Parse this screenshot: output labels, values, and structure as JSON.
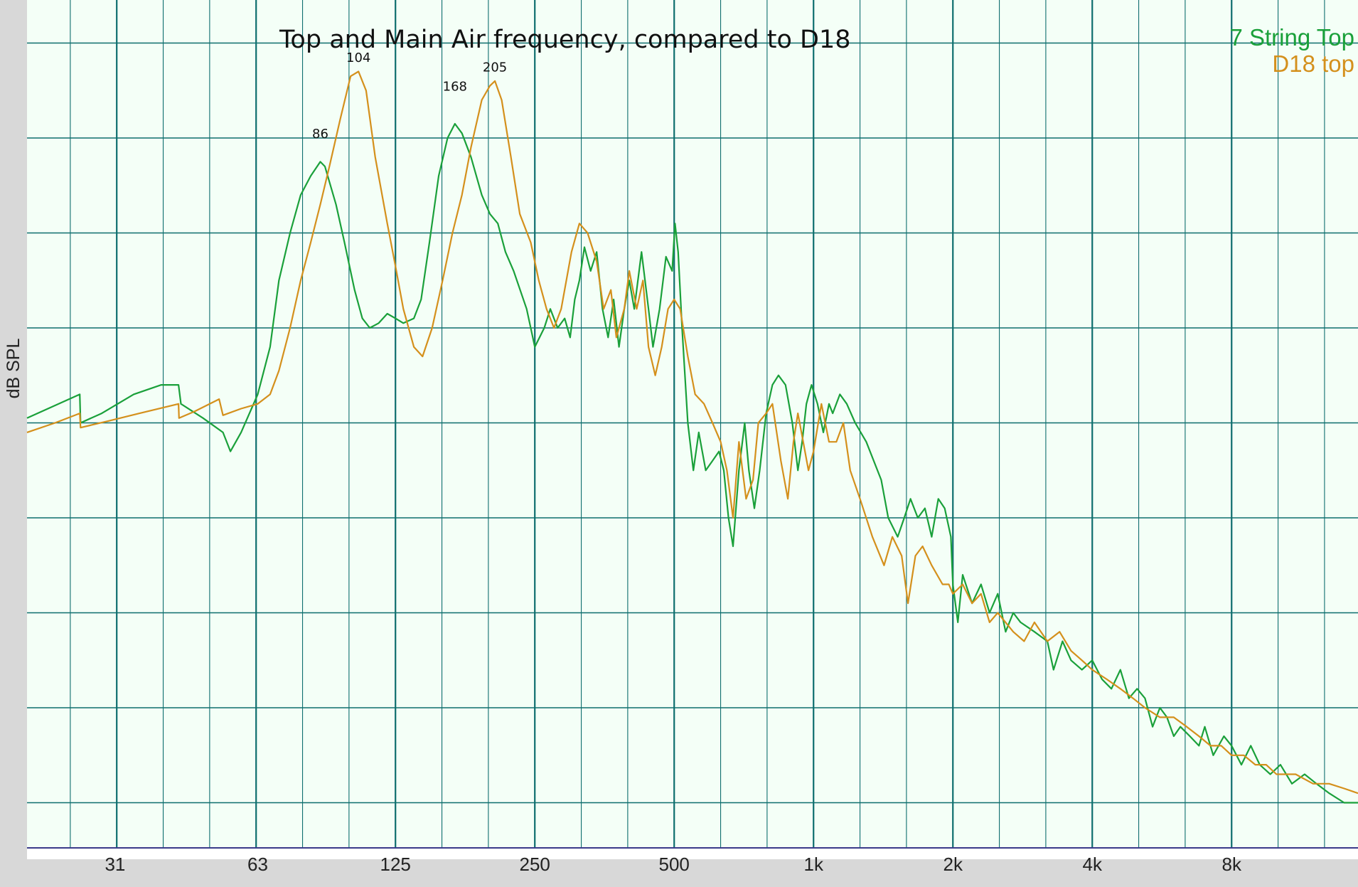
{
  "chart_data": {
    "type": "line",
    "title": "Top and Main Air frequency, compared to D18",
    "xlabel": "",
    "ylabel": "dB SPL",
    "x_scale": "log",
    "xlim": [
      20,
      15000
    ],
    "ylim": [
      0,
      100
    ],
    "grid": true,
    "legend_position": "top-right",
    "x_tick_labels": [
      {
        "f": 31,
        "label": "31"
      },
      {
        "f": 63,
        "label": "63"
      },
      {
        "f": 125,
        "label": "125"
      },
      {
        "f": 250,
        "label": "250"
      },
      {
        "f": 500,
        "label": "500"
      },
      {
        "f": 1000,
        "label": "1k"
      },
      {
        "f": 2000,
        "label": "2k"
      },
      {
        "f": 4000,
        "label": "4k"
      },
      {
        "f": 8000,
        "label": "8k"
      }
    ],
    "annotations": [
      {
        "text": "86",
        "x": 86,
        "y": 80
      },
      {
        "text": "104",
        "x": 104,
        "y": 88
      },
      {
        "text": "168",
        "x": 168,
        "y": 85
      },
      {
        "text": "205",
        "x": 205,
        "y": 87
      }
    ],
    "series": [
      {
        "name": "7 String Top",
        "color": "#1aa03a",
        "points": [
          [
            20,
            50.5
          ],
          [
            26,
            53
          ],
          [
            26.1,
            50
          ],
          [
            29,
            51
          ],
          [
            34,
            53
          ],
          [
            39,
            54
          ],
          [
            42.5,
            54
          ],
          [
            43,
            52
          ],
          [
            48,
            50.5
          ],
          [
            53,
            49
          ],
          [
            55,
            47
          ],
          [
            58,
            49
          ],
          [
            63,
            53
          ],
          [
            67,
            58
          ],
          [
            70,
            65
          ],
          [
            74,
            70
          ],
          [
            78,
            74
          ],
          [
            82,
            76
          ],
          [
            86,
            77.5
          ],
          [
            88,
            77
          ],
          [
            93,
            73
          ],
          [
            97,
            69
          ],
          [
            102,
            64
          ],
          [
            106,
            61
          ],
          [
            110,
            60
          ],
          [
            115,
            60.5
          ],
          [
            120,
            61.5
          ],
          [
            125,
            61
          ],
          [
            130,
            60.5
          ],
          [
            137,
            61
          ],
          [
            142,
            63
          ],
          [
            148,
            69
          ],
          [
            155,
            76
          ],
          [
            162,
            80
          ],
          [
            168,
            81.5
          ],
          [
            174,
            80.5
          ],
          [
            182,
            78
          ],
          [
            192,
            74
          ],
          [
            200,
            72
          ],
          [
            208,
            71
          ],
          [
            216,
            68
          ],
          [
            225,
            66
          ],
          [
            240,
            62
          ],
          [
            250,
            58
          ],
          [
            262,
            60
          ],
          [
            270,
            62
          ],
          [
            280,
            60
          ],
          [
            290,
            61
          ],
          [
            298,
            59
          ],
          [
            305,
            63
          ],
          [
            312,
            65
          ],
          [
            320,
            68.5
          ],
          [
            330,
            66
          ],
          [
            340,
            68
          ],
          [
            350,
            62
          ],
          [
            360,
            59
          ],
          [
            370,
            63
          ],
          [
            380,
            58
          ],
          [
            390,
            62
          ],
          [
            400,
            65
          ],
          [
            410,
            62
          ],
          [
            425,
            68
          ],
          [
            440,
            62
          ],
          [
            450,
            58
          ],
          [
            465,
            62
          ],
          [
            480,
            67.5
          ],
          [
            495,
            66
          ],
          [
            502,
            71
          ],
          [
            510,
            68
          ],
          [
            520,
            60
          ],
          [
            535,
            50
          ],
          [
            550,
            45
          ],
          [
            565,
            49
          ],
          [
            585,
            45
          ],
          [
            605,
            46
          ],
          [
            625,
            47
          ],
          [
            640,
            45
          ],
          [
            655,
            40
          ],
          [
            670,
            37
          ],
          [
            690,
            45
          ],
          [
            710,
            50
          ],
          [
            725,
            45
          ],
          [
            745,
            41
          ],
          [
            765,
            45
          ],
          [
            790,
            51
          ],
          [
            815,
            54
          ],
          [
            840,
            55
          ],
          [
            870,
            54
          ],
          [
            900,
            50
          ],
          [
            925,
            45
          ],
          [
            945,
            48
          ],
          [
            965,
            52
          ],
          [
            990,
            54
          ],
          [
            1020,
            52
          ],
          [
            1050,
            49
          ],
          [
            1080,
            52
          ],
          [
            1100,
            51
          ],
          [
            1140,
            53
          ],
          [
            1180,
            52
          ],
          [
            1230,
            50
          ],
          [
            1300,
            48
          ],
          [
            1400,
            44
          ],
          [
            1450,
            40
          ],
          [
            1520,
            38
          ],
          [
            1570,
            40
          ],
          [
            1620,
            42
          ],
          [
            1680,
            40
          ],
          [
            1740,
            41
          ],
          [
            1800,
            38
          ],
          [
            1860,
            42
          ],
          [
            1920,
            41
          ],
          [
            1980,
            38
          ],
          [
            2000,
            33
          ],
          [
            2050,
            29
          ],
          [
            2100,
            34
          ],
          [
            2200,
            31
          ],
          [
            2300,
            33
          ],
          [
            2400,
            30
          ],
          [
            2500,
            32
          ],
          [
            2600,
            28
          ],
          [
            2700,
            30
          ],
          [
            2800,
            29
          ],
          [
            3000,
            28
          ],
          [
            3200,
            27
          ],
          [
            3300,
            24
          ],
          [
            3450,
            27
          ],
          [
            3600,
            25
          ],
          [
            3800,
            24
          ],
          [
            4000,
            25
          ],
          [
            4200,
            23
          ],
          [
            4400,
            22
          ],
          [
            4600,
            24
          ],
          [
            4800,
            21
          ],
          [
            5000,
            22
          ],
          [
            5200,
            21
          ],
          [
            5400,
            18
          ],
          [
            5600,
            20
          ],
          [
            5800,
            19
          ],
          [
            6000,
            17
          ],
          [
            6200,
            18
          ],
          [
            6500,
            17
          ],
          [
            6800,
            16
          ],
          [
            7000,
            18
          ],
          [
            7300,
            15
          ],
          [
            7700,
            17
          ],
          [
            8000,
            16
          ],
          [
            8400,
            14
          ],
          [
            8800,
            16
          ],
          [
            9200,
            14
          ],
          [
            9700,
            13
          ],
          [
            10200,
            14
          ],
          [
            10800,
            12
          ],
          [
            11500,
            13
          ],
          [
            12200,
            12
          ],
          [
            13000,
            11
          ],
          [
            14000,
            10
          ],
          [
            15000,
            10
          ]
        ]
      },
      {
        "name": "D18 top",
        "color": "#d4901c",
        "points": [
          [
            20,
            49
          ],
          [
            23,
            50
          ],
          [
            26,
            51
          ],
          [
            26.1,
            49.5
          ],
          [
            30,
            50.2
          ],
          [
            35,
            51
          ],
          [
            42.5,
            52
          ],
          [
            42.6,
            50.5
          ],
          [
            46,
            51.2
          ],
          [
            52,
            52.5
          ],
          [
            53,
            50.8
          ],
          [
            58,
            51.5
          ],
          [
            63,
            52
          ],
          [
            67,
            53
          ],
          [
            70,
            55.5
          ],
          [
            74,
            60
          ],
          [
            78,
            65
          ],
          [
            82,
            69
          ],
          [
            86,
            73
          ],
          [
            90,
            77
          ],
          [
            95,
            82
          ],
          [
            100,
            86.5
          ],
          [
            104,
            87
          ],
          [
            108,
            85
          ],
          [
            113,
            78
          ],
          [
            120,
            71
          ],
          [
            125,
            66.5
          ],
          [
            130,
            62
          ],
          [
            137,
            58
          ],
          [
            143,
            57
          ],
          [
            150,
            60
          ],
          [
            158,
            65
          ],
          [
            166,
            70
          ],
          [
            174,
            74
          ],
          [
            182,
            79
          ],
          [
            192,
            84
          ],
          [
            200,
            85.5
          ],
          [
            205,
            86
          ],
          [
            212,
            84
          ],
          [
            222,
            78
          ],
          [
            232,
            72
          ],
          [
            245,
            69
          ],
          [
            255,
            65
          ],
          [
            265,
            62
          ],
          [
            275,
            60
          ],
          [
            285,
            62
          ],
          [
            300,
            68
          ],
          [
            312,
            71
          ],
          [
            325,
            70
          ],
          [
            340,
            67
          ],
          [
            352,
            62
          ],
          [
            365,
            64
          ],
          [
            375,
            59
          ],
          [
            390,
            62
          ],
          [
            400,
            66
          ],
          [
            415,
            62
          ],
          [
            428,
            65
          ],
          [
            440,
            58
          ],
          [
            455,
            55
          ],
          [
            470,
            58
          ],
          [
            485,
            62
          ],
          [
            500,
            63
          ],
          [
            515,
            62
          ],
          [
            535,
            57
          ],
          [
            555,
            53
          ],
          [
            580,
            52
          ],
          [
            605,
            50
          ],
          [
            630,
            48
          ],
          [
            650,
            45
          ],
          [
            670,
            40
          ],
          [
            690,
            48
          ],
          [
            715,
            42
          ],
          [
            740,
            44
          ],
          [
            760,
            50
          ],
          [
            790,
            51
          ],
          [
            815,
            52
          ],
          [
            850,
            46
          ],
          [
            880,
            42
          ],
          [
            905,
            48
          ],
          [
            925,
            51
          ],
          [
            950,
            48
          ],
          [
            975,
            45
          ],
          [
            1000,
            47
          ],
          [
            1040,
            52
          ],
          [
            1080,
            48
          ],
          [
            1120,
            48
          ],
          [
            1160,
            50
          ],
          [
            1200,
            45
          ],
          [
            1260,
            42
          ],
          [
            1340,
            38
          ],
          [
            1420,
            35
          ],
          [
            1480,
            38
          ],
          [
            1550,
            36
          ],
          [
            1600,
            31
          ],
          [
            1660,
            36
          ],
          [
            1720,
            37
          ],
          [
            1800,
            35
          ],
          [
            1900,
            33
          ],
          [
            1960,
            33
          ],
          [
            2000,
            32
          ],
          [
            2100,
            33
          ],
          [
            2200,
            31
          ],
          [
            2300,
            32
          ],
          [
            2400,
            29
          ],
          [
            2500,
            30
          ],
          [
            2700,
            28
          ],
          [
            2850,
            27
          ],
          [
            3000,
            29
          ],
          [
            3200,
            27
          ],
          [
            3400,
            28
          ],
          [
            3600,
            26
          ],
          [
            3800,
            25
          ],
          [
            4000,
            24
          ],
          [
            4300,
            23
          ],
          [
            4600,
            22
          ],
          [
            4900,
            21
          ],
          [
            5200,
            20
          ],
          [
            5600,
            19
          ],
          [
            6000,
            19
          ],
          [
            6400,
            18
          ],
          [
            6800,
            17
          ],
          [
            7200,
            16
          ],
          [
            7600,
            16
          ],
          [
            8000,
            15
          ],
          [
            8500,
            15
          ],
          [
            9000,
            14
          ],
          [
            9500,
            14
          ],
          [
            10000,
            13
          ],
          [
            11000,
            13
          ],
          [
            12000,
            12
          ],
          [
            13000,
            12
          ],
          [
            14000,
            11.5
          ],
          [
            15000,
            11
          ]
        ]
      }
    ]
  }
}
